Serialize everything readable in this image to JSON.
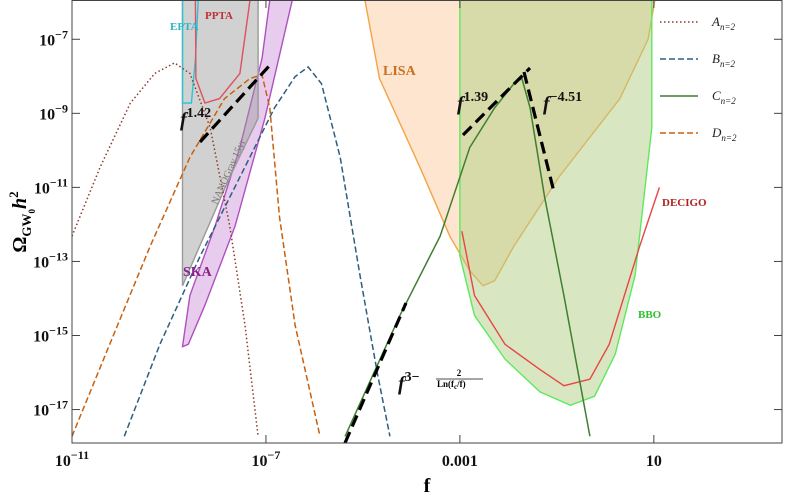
{
  "chart_data": {
    "type": "line",
    "log_x": true,
    "log_y": true,
    "x_label": "f",
    "y_label": {
      "symbol": "Ω",
      "subscript": "GW",
      "subsubscript": "0",
      "factor": "h",
      "power": "2"
    },
    "xlim": [
      1e-11,
      4400
    ],
    "ylim": [
      1.25e-18,
      1.15e-06
    ],
    "xticks": [
      {
        "value": 1e-11,
        "label": "10−11"
      },
      {
        "value": 1e-07,
        "label": "10−7"
      },
      0.001,
      10
    ],
    "yticks": [
      {
        "value": 1e-07,
        "label": "10−7"
      },
      {
        "value": 1e-09,
        "label": "10−9"
      },
      {
        "value": 1e-11,
        "label": "10−11"
      },
      {
        "value": 1e-13,
        "label": "10−13"
      },
      {
        "value": 1e-15,
        "label": "10−15"
      },
      {
        "value": 1e-17,
        "label": "10−17"
      }
    ],
    "legend": "upper right",
    "series": [
      {
        "name": "A",
        "subscript": "n=2",
        "color": "#8b3a2a",
        "style": "dotted",
        "x": [
          1e-11,
          3.8e-11,
          1.6e-10,
          5.1e-10,
          1.3e-09,
          2.7e-09,
          7.1e-09,
          1.8e-08,
          3.7e-08,
          6.9e-08
        ],
        "values": [
          4.8e-13,
          3.5e-11,
          1.9e-09,
          1.2e-08,
          2.3e-08,
          1.2e-08,
          4.1e-10,
          8.9e-13,
          1.9e-15,
          1.9e-18
        ]
      },
      {
        "name": "B",
        "subscript": "n=2",
        "color": "#2e5e7e",
        "style": "dashed",
        "x": [
          1.2e-10,
          6.5e-10,
          4.4e-09,
          2.9e-08,
          1.5e-07,
          4e-07,
          7.4e-07,
          1.4e-06,
          3.4e-06,
          8.7e-06,
          2e-05,
          3.6e-05
        ],
        "values": [
          1.9e-18,
          5.8e-16,
          1.4e-13,
          1.9e-11,
          1.4e-09,
          9.8e-09,
          1.8e-08,
          6.3e-09,
          6.5e-11,
          4.2e-14,
          9.1e-17,
          1.9e-18
        ]
      },
      {
        "name": "C",
        "subscript": "n=2",
        "color": "#3e7f30",
        "style": "solid",
        "x": [
          4.3e-06,
          5.8e-05,
          0.00039,
          0.0016,
          0.0052,
          0.013,
          0.019,
          0.028,
          0.056,
          0.14,
          0.48
        ],
        "values": [
          1.9e-18,
          3.5e-15,
          4.8e-13,
          1.2e-10,
          1.4e-09,
          6.3e-09,
          8.7e-09,
          1.4e-09,
          5.5e-12,
          1.2e-14,
          1.9e-18
        ]
      },
      {
        "name": "D",
        "subscript": "n=2",
        "color": "#c8600f",
        "style": "dashed",
        "x": [
          1e-11,
          6e-11,
          4.1e-10,
          2.7e-09,
          1.4e-08,
          4.7e-08,
          8.3e-08,
          1.2e-07,
          1.9e-07,
          4e-07,
          1.3e-06
        ],
        "values": [
          1.9e-18,
          5.8e-16,
          2.6e-13,
          6.5e-11,
          2.5e-09,
          8.7e-09,
          1.1e-08,
          1.4e-09,
          1.6e-12,
          1.9e-15,
          1.9e-18
        ]
      }
    ],
    "regions": [
      {
        "name": "LISA",
        "fill": "#fde5cf",
        "fill_opacity": 1,
        "stroke": "#f5a347",
        "label_color": "#c8701f",
        "x": [
          1.1e-05,
          2.2e-05,
          0.00015,
          0.00062,
          0.0016,
          0.003,
          0.0052,
          0.013,
          0.11,
          2.0,
          7.6,
          10.5
        ],
        "values": [
          1.15e-06,
          8.7e-09,
          3.5e-11,
          4.8e-13,
          5.6e-14,
          2.2e-14,
          3e-14,
          2.6e-13,
          1.9e-11,
          2.5e-09,
          1e-07,
          1.15e-06
        ]
      },
      {
        "name": "BBO",
        "fill": "#b2d083",
        "fill_opacity": 0.5,
        "stroke": "#5ee85e",
        "label_color": "#30c030",
        "x": [
          0.001,
          0.001,
          0.002,
          0.0085,
          0.045,
          0.19,
          0.6,
          1.6,
          4.1,
          9.1,
          9.1
        ],
        "values": [
          1.15e-06,
          1.4e-13,
          3.5e-15,
          2.3e-16,
          3e-17,
          1.3e-17,
          2.3e-17,
          3.1e-16,
          4.2e-14,
          4.1e-10,
          1.15e-06
        ]
      },
      {
        "name": "DECIGO",
        "fill": "none",
        "fill_opacity": 0,
        "stroke": "#e84545",
        "label_color": "#b02020",
        "x": [
          0.0011,
          0.002,
          0.0085,
          0.045,
          0.14,
          0.48,
          1.2,
          5.1,
          13
        ],
        "values": [
          6.5e-13,
          1.2e-14,
          5.8e-16,
          1.2e-16,
          4.4e-17,
          6.6e-17,
          5.8e-16,
          2.6e-13,
          1e-11
        ]
      },
      {
        "name": "SKA",
        "fill": "#e5c6ec",
        "fill_opacity": 0.9,
        "stroke": "#b050c0",
        "label_color": "#8a208a",
        "x": [
          1.9e-09,
          2.7e-09,
          8.9e-09,
          2.9e-08,
          8.3e-08,
          1.2e-07,
          3.5e-07,
          9.5e-08,
          2.3e-08,
          5.5e-09,
          2.5e-09
        ],
        "values": [
          5e-16,
          1.2e-14,
          8.9e-13,
          1.2e-10,
          3e-08,
          1.15e-06,
          1.15e-06,
          7.4e-10,
          8.9e-13,
          6.6e-15,
          5.8e-16
        ]
      },
      {
        "name": "NANOGrav 15yr",
        "fill": "#9a9a9a",
        "fill_opacity": 0.45,
        "stroke": "#9a9a9a",
        "label_color": "#777777",
        "x": [
          1.9e-09,
          1.9e-09,
          3.5e-09,
          1.8e-08,
          6.9e-08,
          6.9e-08
        ],
        "values": [
          1.15e-06,
          2.2e-14,
          1.4e-13,
          1.9e-11,
          7.4e-10,
          1.15e-06
        ]
      },
      {
        "name": "EPTA",
        "fill": "none",
        "fill_opacity": 0,
        "stroke": "#2bc5d5",
        "label_color": "#2bb5c5",
        "x": [
          1.9e-09,
          1.9e-09,
          2.9e-09,
          3.5e-09,
          4e-09
        ],
        "values": [
          1.15e-06,
          1.9e-09,
          1.9e-09,
          2.9e-08,
          1.15e-06
        ]
      },
      {
        "name": "PPTA",
        "fill": "none",
        "fill_opacity": 0,
        "stroke": "#e05060",
        "label_color": "#c0303a",
        "x": [
          3.5e-09,
          3.6e-09,
          5.5e-09,
          1.1e-08,
          2.9e-08,
          4.7e-08
        ],
        "values": [
          1.15e-06,
          8.7e-09,
          1.9e-09,
          2.5e-09,
          1.2e-08,
          1.15e-06
        ]
      }
    ],
    "annotations": [
      {
        "base": "f",
        "exponent": "1.42"
      },
      {
        "base": "f",
        "exponent": "1.39"
      },
      {
        "base": "f",
        "exponent": "−4.51"
      },
      {
        "base": "f",
        "exponent": "3−",
        "numerator": "2",
        "denominator": "Ln(f",
        "denominator_sub": "c",
        "denominator_end": "/f)"
      }
    ]
  }
}
